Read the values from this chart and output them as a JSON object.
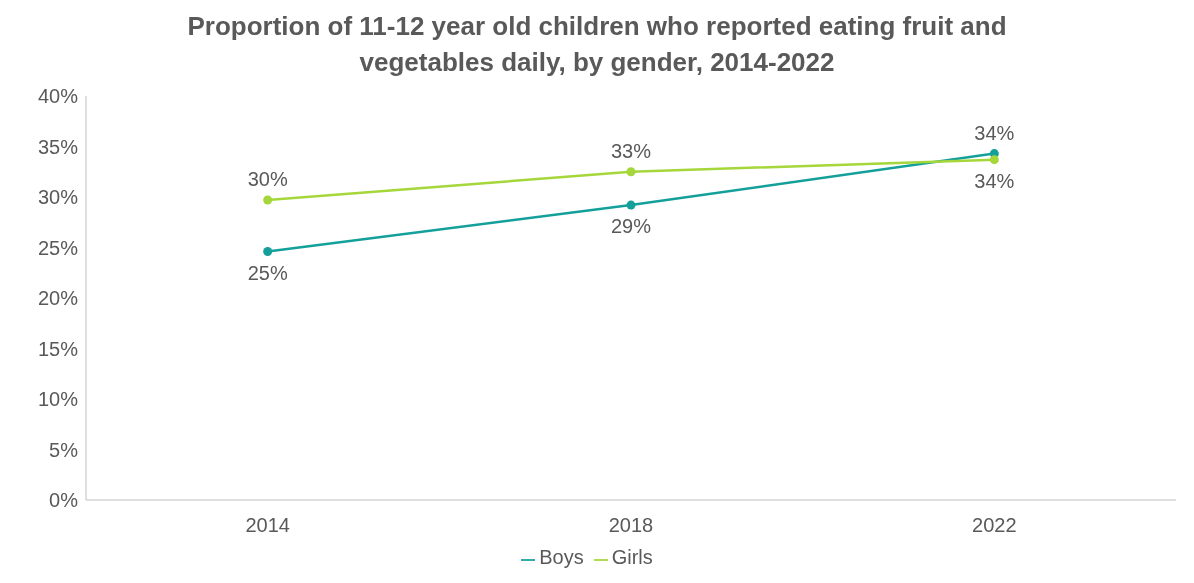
{
  "chart_data": {
    "type": "line",
    "title": "Proportion of 11-12 year old children who reported eating fruit and vegetables daily, by gender, 2014-2022",
    "categories": [
      "2014",
      "2018",
      "2022"
    ],
    "series": [
      {
        "name": "Boys",
        "color": "#14a09a",
        "values": [
          24.6,
          29.2,
          34.3
        ],
        "value_labels": [
          "25%",
          "29%",
          "34%"
        ]
      },
      {
        "name": "Girls",
        "color": "#a5d63a",
        "values": [
          29.7,
          32.5,
          33.7
        ],
        "value_labels": [
          "30%",
          "33%",
          "34%"
        ]
      }
    ],
    "ylim": [
      0,
      40
    ],
    "yticks": [
      {
        "value": 0,
        "label": "0%"
      },
      {
        "value": 5,
        "label": "5%"
      },
      {
        "value": 10,
        "label": "10%"
      },
      {
        "value": 15,
        "label": "15%"
      },
      {
        "value": 20,
        "label": "20%"
      },
      {
        "value": 25,
        "label": "25%"
      },
      {
        "value": 30,
        "label": "30%"
      },
      {
        "value": 35,
        "label": "35%"
      },
      {
        "value": 40,
        "label": "40%"
      }
    ],
    "grid": false,
    "legend": "bottom",
    "marker": "circle",
    "line_style": "solid"
  }
}
